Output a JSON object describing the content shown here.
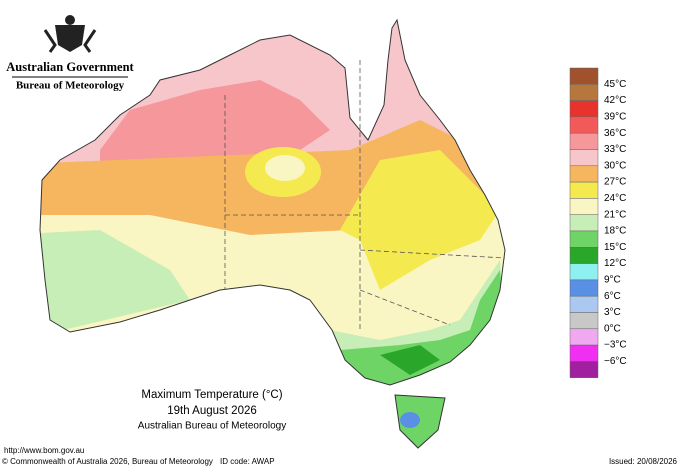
{
  "header": {
    "agency": "Australian Government",
    "bureau": "Bureau of Meteorology"
  },
  "legend": {
    "labels": [
      "45°C",
      "42°C",
      "39°C",
      "36°C",
      "33°C",
      "30°C",
      "27°C",
      "24°C",
      "21°C",
      "18°C",
      "15°C",
      "12°C",
      "9°C",
      "6°C",
      "3°C",
      "0°C",
      "−3°C",
      "−6°C"
    ],
    "colors": [
      "#a0522d",
      "#b8763f",
      "#e8322e",
      "#f25a5a",
      "#f5979b",
      "#f6c6ca",
      "#f6b660",
      "#f4ea50",
      "#faf6c4",
      "#c8eeb8",
      "#6fd466",
      "#2aa72a",
      "#8ff0f0",
      "#5a8fe6",
      "#aac8f0",
      "#c8c8c8",
      "#f0a8f0",
      "#f030f0",
      "#a020a0"
    ]
  },
  "title": {
    "line1": "Maximum Temperature (°C)",
    "line2": "19th August 2026",
    "line3": "Australian Bureau of Meteorology"
  },
  "footer": {
    "url": "http://www.bom.gov.au",
    "copyright": "© Commonwealth of Australia 2026, Bureau of Meteorology",
    "id": "ID code: AWAP",
    "issued": "Issued: 20/08/2026"
  }
}
